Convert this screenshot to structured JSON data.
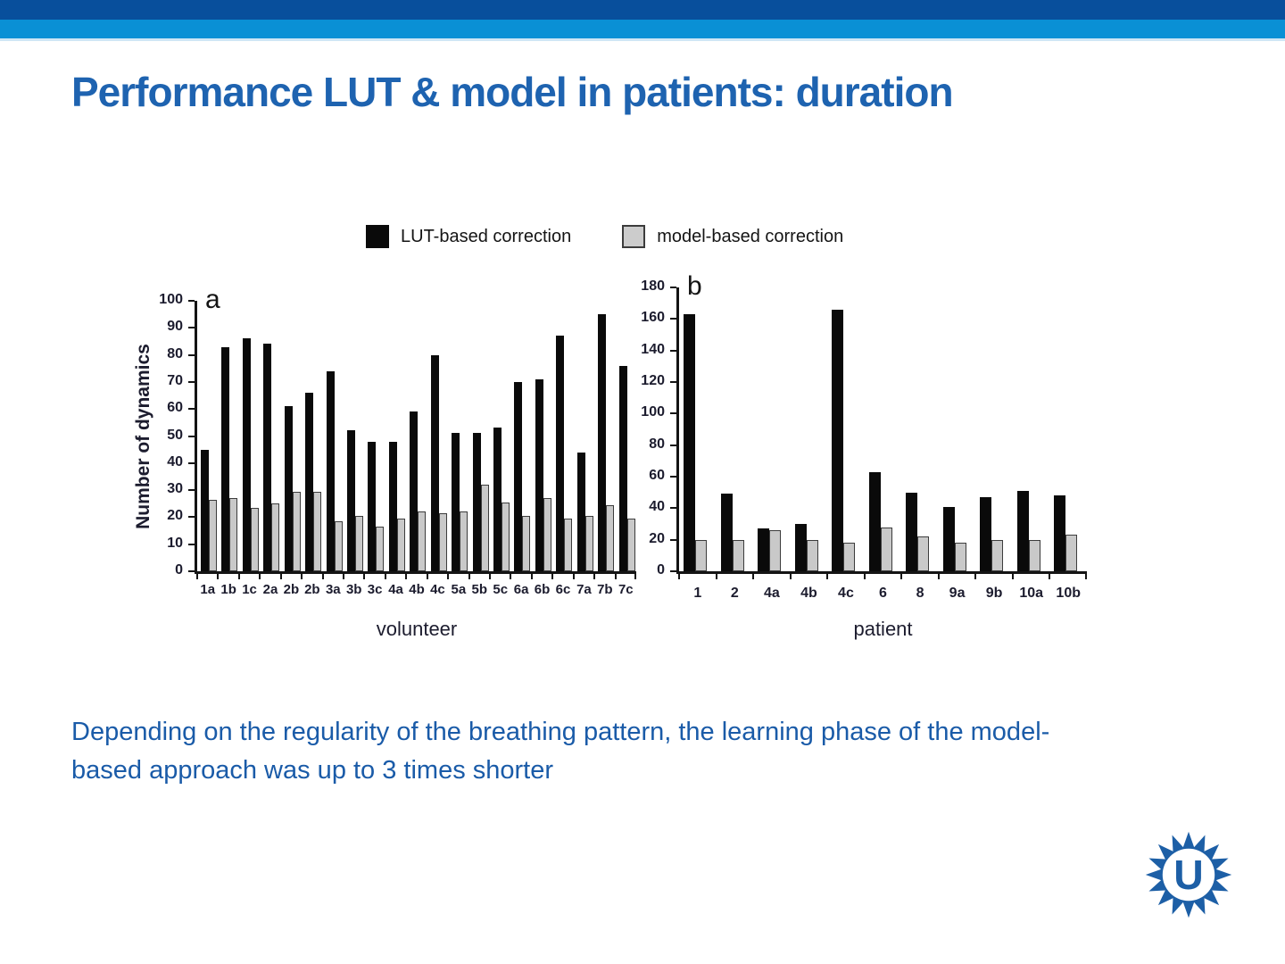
{
  "title": "Performance LUT & model in patients: duration",
  "caption": {
    "line1": "Depending on the regularity of the breathing pattern, the learning phase of the model-",
    "line2": "based approach was up to 3 times shorter"
  },
  "legend": [
    {
      "label": "LUT-based correction",
      "swatch_fill": "#0a0a0a",
      "swatch_border": "#0a0a0a"
    },
    {
      "label": "model-based correction",
      "swatch_fill": "#cccccc",
      "swatch_border": "#3c3c3c"
    }
  ],
  "logo": {
    "letter": "U"
  },
  "theme": {
    "header_dark_blue": "#084f9c",
    "header_light_blue": "#0a90d5",
    "header_pale_blue": "#cfe6f5",
    "title_blue": "#1e63b0",
    "caption_blue": "#1a5ba8",
    "logo_blue": "#1d5fa6",
    "axis_color": "#141414",
    "tick_label_color": "#1c1c2e",
    "bar_black": "#0a0a0a",
    "bar_gray_fill": "#c9c9c9",
    "bar_gray_border": "#3c3c3c"
  },
  "chart_data": [
    {
      "type": "bar",
      "panel_label": "a",
      "xlabel": "volunteer",
      "ylabel": "Number of dynamics",
      "ylim": [
        0,
        100
      ],
      "ytick_step": 10,
      "ytick_labels": [
        "0",
        "10",
        "20",
        "30",
        "40",
        "50",
        "60",
        "70",
        "80",
        "90",
        "100"
      ],
      "grid": false,
      "legend_position": "top",
      "categories": [
        "1a",
        "1b",
        "1c",
        "2a",
        "2b",
        "2b",
        "3a",
        "3b",
        "3c",
        "4a",
        "4b",
        "4c",
        "5a",
        "5b",
        "5c",
        "6a",
        "6b",
        "6c",
        "7a",
        "7b",
        "7c"
      ],
      "series": [
        {
          "name": "LUT-based correction",
          "values": [
            45,
            83,
            86,
            84,
            61,
            66,
            74,
            52,
            48,
            48,
            59,
            80,
            51,
            51,
            53,
            70,
            71,
            87,
            44,
            95,
            76
          ]
        },
        {
          "name": "model-based correction",
          "values": [
            26.5,
            27,
            23.5,
            25,
            29.5,
            29.5,
            18.5,
            20.5,
            16.5,
            19.5,
            22,
            21.5,
            22,
            32,
            25.5,
            20.5,
            27,
            19.5,
            20.5,
            24.5,
            19.5
          ]
        }
      ]
    },
    {
      "type": "bar",
      "panel_label": "b",
      "xlabel": "patient",
      "ylabel": "",
      "ylim": [
        0,
        180
      ],
      "ytick_step": 20,
      "ytick_labels": [
        "0",
        "20",
        "40",
        "60",
        "80",
        "100",
        "120",
        "140",
        "160",
        "180"
      ],
      "grid": false,
      "legend_position": "top",
      "categories": [
        "1",
        "2",
        "4a",
        "4b",
        "4c",
        "6",
        "8",
        "9a",
        "9b",
        "10a",
        "10b"
      ],
      "series": [
        {
          "name": "LUT-based correction",
          "values": [
            163,
            49,
            27,
            30,
            166,
            63,
            50,
            41,
            47,
            51,
            48
          ]
        },
        {
          "name": "model-based correction",
          "values": [
            20,
            20,
            26,
            20,
            18,
            28,
            22,
            18,
            20,
            20,
            23
          ]
        }
      ]
    }
  ]
}
